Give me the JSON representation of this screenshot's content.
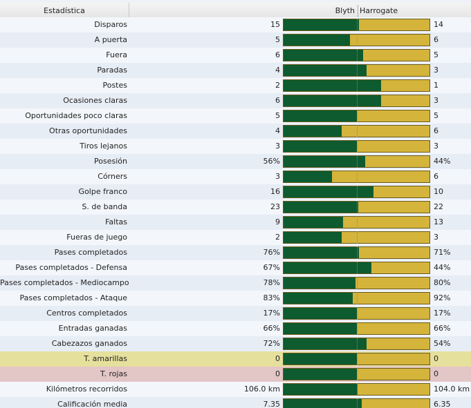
{
  "header": {
    "stat_label": "Estadística",
    "home_team": "Blyth",
    "away_team": "Harrogate"
  },
  "colors": {
    "home_bar": "#0d5b2f",
    "away_bar": "#d4b43b",
    "yellow_row": "#e6e09d",
    "red_row": "#e3c6c6"
  },
  "stats": [
    {
      "label": "Disparos",
      "home": "15",
      "away": "14",
      "home_share": 0.517
    },
    {
      "label": "A puerta",
      "home": "5",
      "away": "6",
      "home_share": 0.455
    },
    {
      "label": "Fuera",
      "home": "6",
      "away": "5",
      "home_share": 0.545
    },
    {
      "label": "Paradas",
      "home": "4",
      "away": "3",
      "home_share": 0.571
    },
    {
      "label": "Postes",
      "home": "2",
      "away": "1",
      "home_share": 0.667
    },
    {
      "label": "Ocasiones claras",
      "home": "6",
      "away": "3",
      "home_share": 0.667
    },
    {
      "label": "Oportunidades poco claras",
      "home": "5",
      "away": "5",
      "home_share": 0.5
    },
    {
      "label": "Otras oportunidades",
      "home": "4",
      "away": "6",
      "home_share": 0.4
    },
    {
      "label": "Tiros lejanos",
      "home": "3",
      "away": "3",
      "home_share": 0.5
    },
    {
      "label": "Posesión",
      "home": "56%",
      "away": "44%",
      "home_share": 0.56
    },
    {
      "label": "Córners",
      "home": "3",
      "away": "6",
      "home_share": 0.333
    },
    {
      "label": "Golpe franco",
      "home": "16",
      "away": "10",
      "home_share": 0.615
    },
    {
      "label": "S. de banda",
      "home": "23",
      "away": "22",
      "home_share": 0.511
    },
    {
      "label": "Faltas",
      "home": "9",
      "away": "13",
      "home_share": 0.409
    },
    {
      "label": "Fueras de juego",
      "home": "2",
      "away": "3",
      "home_share": 0.4
    },
    {
      "label": "Pases completados",
      "home": "76%",
      "away": "71%",
      "home_share": 0.517
    },
    {
      "label": "Pases completados - Defensa",
      "home": "67%",
      "away": "44%",
      "home_share": 0.604
    },
    {
      "label": "Pases completados - Mediocampo",
      "home": "78%",
      "away": "80%",
      "home_share": 0.494
    },
    {
      "label": "Pases completados - Ataque",
      "home": "83%",
      "away": "92%",
      "home_share": 0.474
    },
    {
      "label": "Centros completados",
      "home": "17%",
      "away": "17%",
      "home_share": 0.5
    },
    {
      "label": "Entradas ganadas",
      "home": "66%",
      "away": "66%",
      "home_share": 0.5
    },
    {
      "label": "Cabezazos ganados",
      "home": "72%",
      "away": "54%",
      "home_share": 0.571
    },
    {
      "label": "T. amarillas",
      "home": "0",
      "away": "0",
      "home_share": 0.5,
      "highlight": "yellow"
    },
    {
      "label": "T. rojas",
      "home": "0",
      "away": "0",
      "home_share": 0.5,
      "highlight": "red"
    },
    {
      "label": "Kilómetros recorridos",
      "home": "106.0 km",
      "away": "104.0 km",
      "home_share": 0.505
    },
    {
      "label": "Calificación media",
      "home": "7.35",
      "away": "6.35",
      "home_share": 0.536
    }
  ]
}
